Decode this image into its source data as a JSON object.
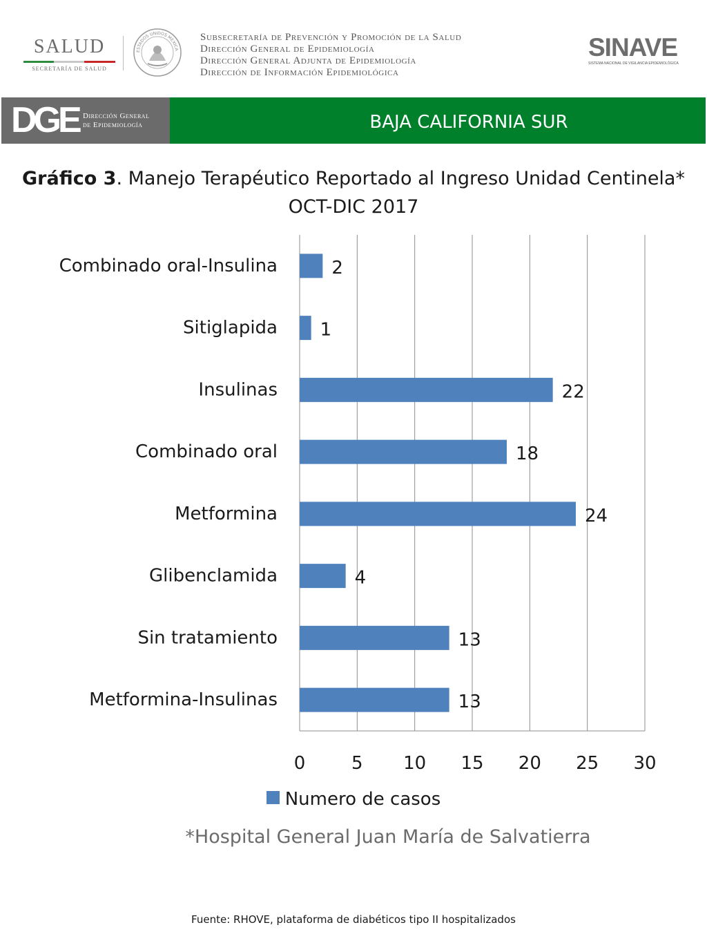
{
  "header": {
    "salud_logo_text": "SALUD",
    "salud_logo_subtext": "SECRETARÍA DE SALUD",
    "seal_text": "ESTADOS UNIDOS MEXICANOS",
    "department_lines": [
      "Subsecretaría de Prevención y Promoción de la Salud",
      "Dirección General de Epidemiología",
      "Dirección General Adjunta de Epidemiología",
      "Dirección de Información Epidemiológica"
    ],
    "sinave_logo_text": "SINAVE",
    "sinave_logo_subtext": "SISTEMA NACIONAL DE VIGILANCIA EPIDEMIOLÓGICA"
  },
  "banner": {
    "dge_mark": "DGE",
    "dge_text_line1": "Dirección General",
    "dge_text_line2": "de Epidemiología",
    "state_name": "BAJA CALIFORNIA SUR",
    "colors": {
      "gray": "#6b6b6b",
      "green": "#00802b"
    }
  },
  "chart_data": {
    "type": "bar",
    "orientation": "horizontal",
    "title_bold": "Gráfico 3",
    "title_rest": ". Manejo Terapéutico Reportado al Ingreso Unidad Centinela* OCT-DIC 2017",
    "categories": [
      "Combinado oral-Insulina",
      "Sitiglapida",
      "Insulinas",
      "Combinado oral",
      "Metformina",
      "Glibenclamida",
      "Sin tratamiento",
      "Metformina-Insulinas"
    ],
    "series": [
      {
        "name": "Numero de casos",
        "values": [
          2,
          1,
          22,
          18,
          24,
          4,
          13,
          13
        ],
        "color": "#4f81bd"
      }
    ],
    "xlim": [
      0,
      30
    ],
    "xticks": [
      "0",
      "5",
      "10",
      "15",
      "20",
      "25",
      "30"
    ],
    "grid": true,
    "legend_position": "bottom",
    "data_labels": true
  },
  "footnote": "*Hospital General Juan María de Salvatierra",
  "source": "Fuente: RHOVE, plataforma de diabéticos tipo II hospitalizados"
}
